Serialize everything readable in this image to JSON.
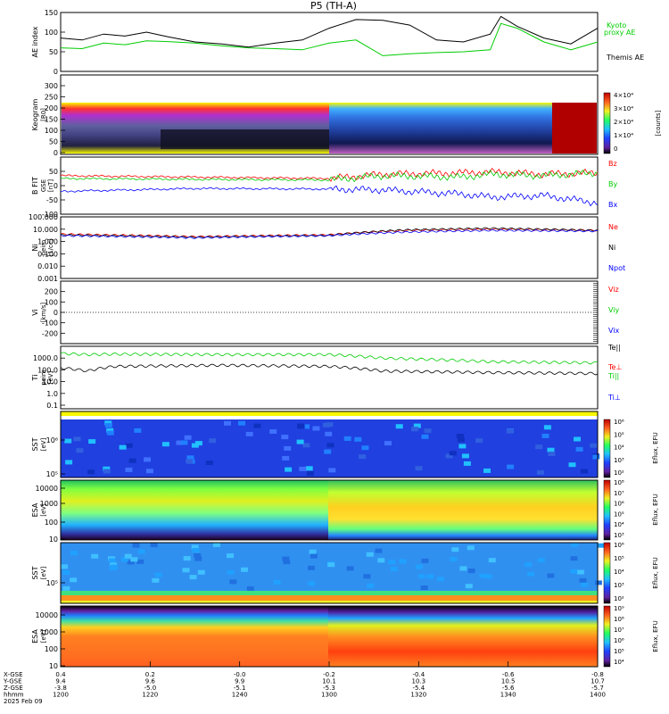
{
  "title": "P5 (TH-A)",
  "footer": {
    "row_labels": [
      "X-GSE",
      "Y-GSE",
      "Z-GSE",
      "hhmm",
      "2025 Feb 09"
    ],
    "columns": [
      {
        "time": "1200",
        "x": "0.4",
        "y": "9.4",
        "z": "-3.8"
      },
      {
        "time": "1220",
        "x": "0.2",
        "y": "9.6",
        "z": "-5.0"
      },
      {
        "time": "1240",
        "x": "-0.0",
        "y": "9.9",
        "z": "-5.1"
      },
      {
        "time": "1300",
        "x": "-0.2",
        "y": "10.1",
        "z": "-5.3"
      },
      {
        "time": "1320",
        "x": "-0.4",
        "y": "10.3",
        "z": "-5.4"
      },
      {
        "time": "1340",
        "x": "-0.6",
        "y": "10.5",
        "z": "-5.6"
      },
      {
        "time": "1400",
        "x": "-0.8",
        "y": "10.7",
        "z": "-5.7"
      }
    ]
  },
  "colorbar_labels": {
    "keogram_ticks": [
      "4×10⁴",
      "3×10⁴",
      "2×10⁴",
      "1×10⁴",
      "0"
    ],
    "keogram_unit": "[counts]",
    "eflux_unit": "Eflux, EFU",
    "sst_i_ticks": [
      "10⁶",
      "10⁵",
      "10⁴",
      "10³",
      "10²"
    ],
    "esa_i_ticks": [
      "10⁸",
      "10⁷",
      "10⁶",
      "10⁵",
      "10⁴",
      "10³"
    ],
    "sst_e_ticks": [
      "10⁶",
      "10⁵",
      "10⁴",
      "10³",
      "10²"
    ],
    "esa_e_ticks": [
      "10⁹",
      "10⁸",
      "10⁷",
      "10⁶",
      "10⁵",
      "10⁴"
    ]
  },
  "chart_data": [
    {
      "type": "line",
      "ylabel": "AE index",
      "ylim": [
        0,
        150
      ],
      "yticks": [
        "0",
        "50",
        "100",
        "150"
      ],
      "x_time_range": [
        "1200",
        "1400"
      ],
      "series": [
        {
          "name": "Kyoto",
          "label2": "proxy AE",
          "color": "#00cc00",
          "x": [
            0,
            0.04,
            0.08,
            0.12,
            0.16,
            0.2,
            0.25,
            0.3,
            0.35,
            0.4,
            0.45,
            0.5,
            0.55,
            0.6,
            0.65,
            0.7,
            0.75,
            0.8,
            0.82,
            0.85,
            0.9,
            0.95,
            1.0
          ],
          "values": [
            60,
            58,
            72,
            68,
            78,
            76,
            72,
            65,
            60,
            58,
            55,
            72,
            80,
            40,
            45,
            48,
            50,
            55,
            122,
            110,
            75,
            55,
            75
          ]
        },
        {
          "name": "Themis AE",
          "color": "#000000",
          "x": [
            0,
            0.04,
            0.08,
            0.12,
            0.16,
            0.2,
            0.25,
            0.3,
            0.35,
            0.4,
            0.45,
            0.5,
            0.55,
            0.6,
            0.65,
            0.7,
            0.75,
            0.8,
            0.82,
            0.85,
            0.9,
            0.95,
            1.0
          ],
          "values": [
            85,
            80,
            95,
            90,
            100,
            88,
            75,
            70,
            62,
            72,
            80,
            110,
            132,
            130,
            118,
            80,
            75,
            95,
            140,
            115,
            85,
            70,
            110
          ]
        }
      ]
    },
    {
      "type": "heatmap",
      "ylabel": "Keogram",
      "ylabel2": "[R0]",
      "ylim": [
        0,
        300
      ],
      "yticks": [
        "0",
        "50",
        "100",
        "150",
        "200",
        "250",
        "300"
      ],
      "colorbar_range": [
        0,
        40000
      ]
    },
    {
      "type": "line",
      "ylabel": "B FIT",
      "ylabel2": "GSE",
      "ylabel3": "[nT]",
      "ylim": [
        -100,
        100
      ],
      "yticks": [
        "-100",
        "-50",
        "0",
        "50"
      ],
      "series": [
        {
          "name": "Bz",
          "color": "#ff0000",
          "x": [
            0,
            0.25,
            0.5,
            0.6,
            0.75,
            0.8,
            0.9,
            1.0
          ],
          "values": [
            35,
            30,
            25,
            40,
            45,
            48,
            40,
            45
          ]
        },
        {
          "name": "By",
          "color": "#00cc00",
          "x": [
            0,
            0.25,
            0.5,
            0.6,
            0.75,
            0.8,
            0.9,
            1.0
          ],
          "values": [
            25,
            22,
            20,
            35,
            30,
            40,
            35,
            45
          ]
        },
        {
          "name": "Bx",
          "color": "#0000ff",
          "x": [
            0,
            0.25,
            0.5,
            0.6,
            0.75,
            0.8,
            0.9,
            1.0
          ],
          "values": [
            -20,
            -10,
            -12,
            -15,
            -30,
            -40,
            -35,
            -60
          ]
        }
      ]
    },
    {
      "type": "line",
      "ylabel": "Ni",
      "ylabel2": "peim",
      "ylabel3": "[1/cc]",
      "ylim_log": [
        0.001,
        100
      ],
      "yticks": [
        "0.001",
        "0.010",
        "0.100",
        "1.000",
        "10.000",
        "100.000"
      ],
      "series": [
        {
          "name": "Ne",
          "color": "#ff0000",
          "x": [
            0,
            0.25,
            0.5,
            0.65,
            0.8,
            1.0
          ],
          "values": [
            4,
            2.5,
            3.5,
            8,
            10,
            8
          ]
        },
        {
          "name": "Ni",
          "color": "#000000",
          "x": [
            0,
            0.25,
            0.5,
            0.65,
            0.8,
            1.0
          ],
          "values": [
            3.5,
            2.3,
            3.2,
            9,
            12,
            8
          ]
        },
        {
          "name": "Npot",
          "color": "#0000ff",
          "x": [
            0,
            0.25,
            0.5,
            0.65,
            0.8,
            1.0
          ],
          "values": [
            3,
            2,
            3,
            6,
            8,
            7
          ]
        }
      ]
    },
    {
      "type": "line",
      "ylabel": "Vi",
      "ylabel2": "[km/s]",
      "ylim": [
        -300,
        300
      ],
      "yticks": [
        "-200",
        "-100",
        "0",
        "100",
        "200"
      ],
      "series": [
        {
          "name": "Viz",
          "color": "#ff0000",
          "x": [],
          "values": []
        },
        {
          "name": "Viy",
          "color": "#00cc00",
          "x": [],
          "values": []
        },
        {
          "name": "Vix",
          "color": "#0000ff",
          "x": [],
          "values": []
        }
      ]
    },
    {
      "type": "line",
      "ylabel": "Ti",
      "ylabel2": "peim",
      "ylabel3": "[eV]",
      "ylim_log": [
        0.05,
        10000
      ],
      "yticks": [
        "0.1",
        "1.0",
        "10.0",
        "100.0",
        "1000.0"
      ],
      "series": [
        {
          "name": "Te||",
          "color": "#000000",
          "x": [],
          "values": []
        },
        {
          "name": "Te⊥",
          "color": "#ff0000",
          "x": [],
          "values": []
        },
        {
          "name": "Ti||",
          "color": "#00cc00",
          "x": [
            0,
            0.05,
            0.1,
            0.3,
            0.5,
            0.6,
            0.8,
            1.0
          ],
          "values": [
            2500,
            2000,
            2200,
            2000,
            2000,
            1000,
            500,
            400
          ]
        },
        {
          "name": "Ti⊥",
          "color": "#0000ff",
          "x": [
            0,
            0.05,
            0.1,
            0.3,
            0.5,
            0.6,
            0.8,
            1.0
          ],
          "values": [
            150,
            80,
            200,
            250,
            200,
            80,
            60,
            50
          ]
        }
      ]
    },
    {
      "type": "heatmap",
      "ylabel": "SST",
      "ylabel2": "[eV]",
      "yticks": [
        "10⁵",
        "10⁶"
      ]
    },
    {
      "type": "heatmap",
      "ylabel": "ESA",
      "ylabel2": "[eV]",
      "yticks": [
        "10",
        "100",
        "1000",
        "10000"
      ]
    },
    {
      "type": "heatmap",
      "ylabel": "SST",
      "ylabel2": "[eV]",
      "yticks": [
        "10⁵"
      ]
    },
    {
      "type": "heatmap",
      "ylabel": "ESA",
      "ylabel2": "[eV]",
      "yticks": [
        "10",
        "100",
        "1000",
        "10000"
      ]
    }
  ]
}
